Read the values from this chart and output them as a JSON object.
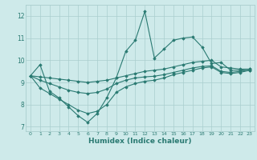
{
  "xlabel": "Humidex (Indice chaleur)",
  "x": [
    0,
    1,
    2,
    3,
    4,
    5,
    6,
    7,
    8,
    9,
    10,
    11,
    12,
    13,
    14,
    15,
    16,
    17,
    18,
    19,
    20,
    21,
    22,
    23
  ],
  "line_volatile": [
    9.3,
    9.8,
    8.6,
    8.3,
    7.9,
    7.5,
    7.2,
    7.6,
    8.3,
    9.2,
    10.4,
    10.9,
    12.2,
    10.1,
    10.5,
    10.9,
    11.0,
    11.05,
    10.6,
    9.85,
    9.9,
    9.55,
    9.55,
    9.6
  ],
  "line_upper": [
    9.3,
    9.25,
    9.2,
    9.15,
    9.1,
    9.05,
    9.0,
    9.05,
    9.1,
    9.2,
    9.3,
    9.4,
    9.5,
    9.55,
    9.6,
    9.7,
    9.8,
    9.9,
    9.95,
    10.0,
    9.7,
    9.65,
    9.6,
    9.6
  ],
  "line_middle": [
    9.3,
    9.1,
    8.95,
    8.8,
    8.65,
    8.55,
    8.5,
    8.55,
    8.7,
    8.95,
    9.1,
    9.2,
    9.25,
    9.28,
    9.35,
    9.45,
    9.55,
    9.65,
    9.72,
    9.75,
    9.5,
    9.45,
    9.5,
    9.55
  ],
  "line_lower": [
    9.3,
    8.75,
    8.5,
    8.25,
    8.0,
    7.75,
    7.6,
    7.7,
    8.0,
    8.55,
    8.8,
    8.95,
    9.05,
    9.1,
    9.2,
    9.35,
    9.45,
    9.55,
    9.65,
    9.7,
    9.45,
    9.4,
    9.45,
    9.55
  ],
  "line_color": "#2a7a72",
  "bg_color": "#ceeaea",
  "grid_color": "#aacece",
  "ylim": [
    6.8,
    12.5
  ],
  "xlim": [
    -0.5,
    23.5
  ],
  "yticks": [
    7,
    8,
    9,
    10,
    11,
    12
  ],
  "xticks": [
    0,
    1,
    2,
    3,
    4,
    5,
    6,
    7,
    8,
    9,
    10,
    11,
    12,
    13,
    14,
    15,
    16,
    17,
    18,
    19,
    20,
    21,
    22,
    23
  ]
}
